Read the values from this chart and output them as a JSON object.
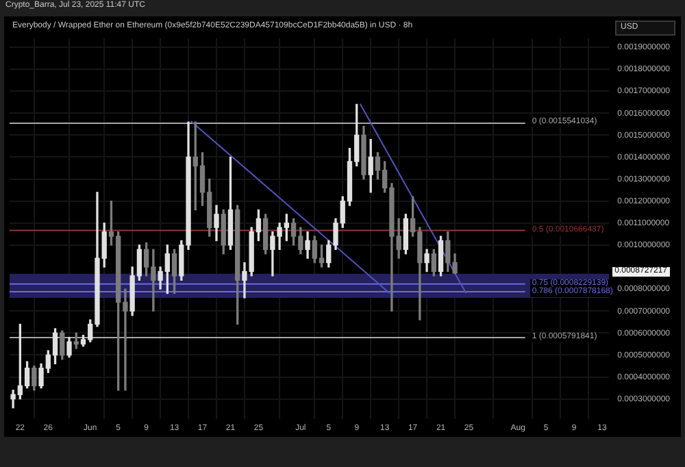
{
  "chart_data": {
    "type": "candlestick",
    "title": "Everybody / Wrapped Ether on Ethereum (0x9e5f2b740E52C239DA457109bcCeD1F2bb40da5B) in USD · 8h",
    "x": [
      "2025-05-21",
      "2025-05-22",
      "2025-05-23",
      "2025-05-24",
      "2025-05-25",
      "2025-05-26",
      "2025-05-27",
      "2025-05-28",
      "2025-05-29",
      "2025-05-30",
      "2025-05-31",
      "2025-06-01",
      "2025-06-02",
      "2025-06-03",
      "2025-06-04",
      "2025-06-05",
      "2025-06-06",
      "2025-06-07",
      "2025-06-08",
      "2025-06-09",
      "2025-06-10",
      "2025-06-11",
      "2025-06-12",
      "2025-06-13",
      "2025-06-14",
      "2025-06-15",
      "2025-06-16",
      "2025-06-17",
      "2025-06-18",
      "2025-06-19",
      "2025-06-20",
      "2025-06-21",
      "2025-06-22",
      "2025-06-23",
      "2025-06-24",
      "2025-06-25",
      "2025-06-26",
      "2025-06-27",
      "2025-06-28",
      "2025-06-29",
      "2025-06-30",
      "2025-07-01",
      "2025-07-02",
      "2025-07-03",
      "2025-07-04",
      "2025-07-05",
      "2025-07-06",
      "2025-07-07",
      "2025-07-08",
      "2025-07-09",
      "2025-07-10",
      "2025-07-11",
      "2025-07-12",
      "2025-07-13",
      "2025-07-14",
      "2025-07-15",
      "2025-07-16",
      "2025-07-17",
      "2025-07-18",
      "2025-07-19",
      "2025-07-20",
      "2025-07-21",
      "2025-07-22",
      "2025-07-23"
    ],
    "ohlc": [
      [
        0.0003,
        0.00034,
        0.00026,
        0.00032
      ],
      [
        0.00032,
        0.00064,
        0.0003,
        0.00036
      ],
      [
        0.00036,
        0.00047,
        0.00035,
        0.00044
      ],
      [
        0.00044,
        0.00045,
        0.00034,
        0.00036
      ],
      [
        0.00036,
        0.00046,
        0.00035,
        0.00044
      ],
      [
        0.00044,
        0.00052,
        0.00042,
        0.0005
      ],
      [
        0.0005,
        0.00062,
        0.00046,
        0.0006
      ],
      [
        0.0006,
        0.00061,
        0.00048,
        0.0005
      ],
      [
        0.0005,
        0.00058,
        0.00049,
        0.00056
      ],
      [
        0.00056,
        0.0006,
        0.00053,
        0.00055
      ],
      [
        0.00055,
        0.00059,
        0.00054,
        0.00057
      ],
      [
        0.00057,
        0.00066,
        0.00056,
        0.00064
      ],
      [
        0.00064,
        0.00124,
        0.00063,
        0.00094
      ],
      [
        0.00094,
        0.0011,
        0.0009,
        0.00106
      ],
      [
        0.00106,
        0.0012,
        0.001,
        0.00104
      ],
      [
        0.00104,
        0.00106,
        0.00034,
        0.00074
      ],
      [
        0.00074,
        0.0008,
        0.00034,
        0.0007
      ],
      [
        0.0007,
        0.0009,
        0.00068,
        0.00086
      ],
      [
        0.00086,
        0.001,
        0.00084,
        0.00098
      ],
      [
        0.00098,
        0.00101,
        0.00086,
        0.0009
      ],
      [
        0.0009,
        0.00098,
        0.0007,
        0.00084
      ],
      [
        0.00084,
        0.0009,
        0.0008,
        0.00088
      ],
      [
        0.00088,
        0.001,
        0.00078,
        0.00096
      ],
      [
        0.00096,
        0.00098,
        0.00078,
        0.00086
      ],
      [
        0.00086,
        0.00102,
        0.00084,
        0.001
      ],
      [
        0.001,
        0.00156,
        0.00098,
        0.0014
      ],
      [
        0.0014,
        0.00156,
        0.00116,
        0.00136
      ],
      [
        0.00136,
        0.00142,
        0.00118,
        0.00124
      ],
      [
        0.00124,
        0.0013,
        0.00104,
        0.00108
      ],
      [
        0.00108,
        0.00118,
        0.00102,
        0.00114
      ],
      [
        0.00114,
        0.00116,
        0.00096,
        0.001
      ],
      [
        0.001,
        0.0014,
        0.00098,
        0.00116
      ],
      [
        0.00116,
        0.00118,
        0.00064,
        0.00084
      ],
      [
        0.00084,
        0.00092,
        0.00076,
        0.00088
      ],
      [
        0.00088,
        0.00108,
        0.00086,
        0.00106
      ],
      [
        0.00106,
        0.00116,
        0.00102,
        0.00112
      ],
      [
        0.00112,
        0.00114,
        0.00096,
        0.00098
      ],
      [
        0.00098,
        0.00106,
        0.00086,
        0.00104
      ],
      [
        0.00104,
        0.0011,
        0.00098,
        0.00108
      ],
      [
        0.00108,
        0.00114,
        0.00102,
        0.0011
      ],
      [
        0.0011,
        0.00112,
        0.001,
        0.00104
      ],
      [
        0.00104,
        0.00108,
        0.00096,
        0.00098
      ],
      [
        0.00098,
        0.00106,
        0.00094,
        0.00102
      ],
      [
        0.00102,
        0.00104,
        0.00092,
        0.00094
      ],
      [
        0.00094,
        0.001,
        0.0009,
        0.00092
      ],
      [
        0.00092,
        0.00102,
        0.0009,
        0.001
      ],
      [
        0.001,
        0.00112,
        0.00098,
        0.0011
      ],
      [
        0.0011,
        0.00122,
        0.00108,
        0.0012
      ],
      [
        0.0012,
        0.00144,
        0.00118,
        0.00138
      ],
      [
        0.00138,
        0.00164,
        0.00136,
        0.0015
      ],
      [
        0.0015,
        0.00154,
        0.0013,
        0.00132
      ],
      [
        0.00132,
        0.00148,
        0.00124,
        0.0014
      ],
      [
        0.0014,
        0.00142,
        0.0013,
        0.00134
      ],
      [
        0.00134,
        0.00138,
        0.00124,
        0.00126
      ],
      [
        0.00126,
        0.00128,
        0.0007,
        0.00104
      ],
      [
        0.00104,
        0.00112,
        0.00094,
        0.00098
      ],
      [
        0.00098,
        0.00114,
        0.00096,
        0.00112
      ],
      [
        0.00112,
        0.00122,
        0.00104,
        0.00106
      ],
      [
        0.00106,
        0.00108,
        0.00066,
        0.00092
      ],
      [
        0.00092,
        0.00098,
        0.00088,
        0.00096
      ],
      [
        0.00096,
        0.00098,
        0.00086,
        0.00088
      ],
      [
        0.00088,
        0.00104,
        0.00086,
        0.00102
      ],
      [
        0.00102,
        0.00106,
        0.00088,
        0.00092
      ],
      [
        0.00092,
        0.00096,
        0.00087,
        0.0008727217
      ]
    ],
    "colors": [
      "#e0e0e0",
      "#e0e0e0",
      "#e0e0e0",
      "#7c7c7c",
      "#e0e0e0",
      "#e0e0e0",
      "#e0e0e0",
      "#7c7c7c",
      "#e0e0e0",
      "#7c7c7c",
      "#e0e0e0",
      "#e0e0e0",
      "#e0e0e0",
      "#e0e0e0",
      "#7c7c7c",
      "#7c7c7c",
      "#7c7c7c",
      "#e0e0e0",
      "#e0e0e0",
      "#7c7c7c",
      "#7c7c7c",
      "#e0e0e0",
      "#e0e0e0",
      "#7c7c7c",
      "#e0e0e0",
      "#e0e0e0",
      "#7c7c7c",
      "#7c7c7c",
      "#7c7c7c",
      "#e0e0e0",
      "#7c7c7c",
      "#e0e0e0",
      "#7c7c7c",
      "#e0e0e0",
      "#e0e0e0",
      "#e0e0e0",
      "#7c7c7c",
      "#e0e0e0",
      "#e0e0e0",
      "#e0e0e0",
      "#7c7c7c",
      "#7c7c7c",
      "#e0e0e0",
      "#7c7c7c",
      "#7c7c7c",
      "#e0e0e0",
      "#e0e0e0",
      "#e0e0e0",
      "#e0e0e0",
      "#e0e0e0",
      "#7c7c7c",
      "#e0e0e0",
      "#7c7c7c",
      "#7c7c7c",
      "#7c7c7c",
      "#7c7c7c",
      "#e0e0e0",
      "#7c7c7c",
      "#7c7c7c",
      "#e0e0e0",
      "#7c7c7c",
      "#e0e0e0",
      "#7c7c7c",
      "#7c7c7c"
    ],
    "series": [
      {
        "type": "line",
        "color": "#5055c0",
        "x": [
          "2025-06-15T08:00",
          "2025-07-13T16:00"
        ],
        "values": [
          0.001564,
          0.000782
        ]
      },
      {
        "type": "line",
        "color": "#5055c0",
        "x": [
          "2025-07-09T12:00",
          "2025-07-24T14:00"
        ],
        "values": [
          0.001642,
          0.000782
        ]
      }
    ],
    "xlim": [
      "2025-05-20T12:00",
      "2025-08-14"
    ],
    "xticks": [
      {
        "value": "2025-05-22",
        "label": "22"
      },
      {
        "value": "2025-05-26",
        "label": "26"
      },
      {
        "value": "2025-06-01",
        "label": "Jun"
      },
      {
        "value": "2025-06-05",
        "label": "5"
      },
      {
        "value": "2025-06-09",
        "label": "9"
      },
      {
        "value": "2025-06-13",
        "label": "13"
      },
      {
        "value": "2025-06-17",
        "label": "17"
      },
      {
        "value": "2025-06-21",
        "label": "21"
      },
      {
        "value": "2025-06-25",
        "label": "25"
      },
      {
        "value": "2025-07-01",
        "label": "Jul"
      },
      {
        "value": "2025-07-05",
        "label": "5"
      },
      {
        "value": "2025-07-09",
        "label": "9"
      },
      {
        "value": "2025-07-13",
        "label": "13"
      },
      {
        "value": "2025-07-17",
        "label": "17"
      },
      {
        "value": "2025-07-21",
        "label": "21"
      },
      {
        "value": "2025-07-25",
        "label": "25"
      },
      {
        "value": "2025-08-01",
        "label": "Aug"
      },
      {
        "value": "2025-08-05",
        "label": "5"
      },
      {
        "value": "2025-08-09",
        "label": "9"
      },
      {
        "value": "2025-08-13",
        "label": "13"
      }
    ],
    "ylim": [
      0.00021,
      0.00194
    ],
    "yticks": [
      {
        "value": 0.0003,
        "label": "0.0003000000"
      },
      {
        "value": 0.0004,
        "label": "0.0004000000"
      },
      {
        "value": 0.0005,
        "label": "0.0005000000"
      },
      {
        "value": 0.0006,
        "label": "0.0006000000"
      },
      {
        "value": 0.0007,
        "label": "0.0007000000"
      },
      {
        "value": 0.0008,
        "label": "0.0008000000"
      },
      {
        "value": 0.001,
        "label": "0.0010000000"
      },
      {
        "value": 0.0011,
        "label": "0.0011000000"
      },
      {
        "value": 0.0012,
        "label": "0.0012000000"
      },
      {
        "value": 0.0013,
        "label": "0.0013000000"
      },
      {
        "value": 0.0014,
        "label": "0.0014000000"
      },
      {
        "value": 0.0015,
        "label": "0.0015000000"
      },
      {
        "value": 0.0016,
        "label": "0.0016000000"
      },
      {
        "value": 0.0017,
        "label": "0.0017000000"
      },
      {
        "value": 0.0018,
        "label": "0.0018000000"
      },
      {
        "value": 0.0019,
        "label": "0.0019000000"
      }
    ],
    "grid": true,
    "ref_lines": [
      {
        "axis": "y",
        "value": 0.0015541034,
        "label": "0 (0.0015541034)",
        "color": "#a8a8a8"
      },
      {
        "axis": "y",
        "value": 0.0010666437,
        "label": "0.5 (0.0010666437)",
        "color": "#9a3434"
      },
      {
        "axis": "y",
        "value": 0.0008229139,
        "label": "0.75 (0.0008229139)",
        "color": "#6a6ae0"
      },
      {
        "axis": "y",
        "value": 0.0007878168,
        "label": "0.786 (0.0007878168)",
        "color": "#6a6ae0"
      },
      {
        "axis": "y",
        "value": 0.0005791841,
        "label": "1 (0.0005791841)",
        "color": "#a8a8a8"
      }
    ],
    "bands": [
      {
        "axis": "y",
        "from": 0.00076,
        "to": 0.00087,
        "color": "#25205f"
      }
    ],
    "annotations": [
      "Crypto_Barra, Jul 23, 2025 11:47 UTC",
      "USD",
      "0.0008727217"
    ]
  }
}
